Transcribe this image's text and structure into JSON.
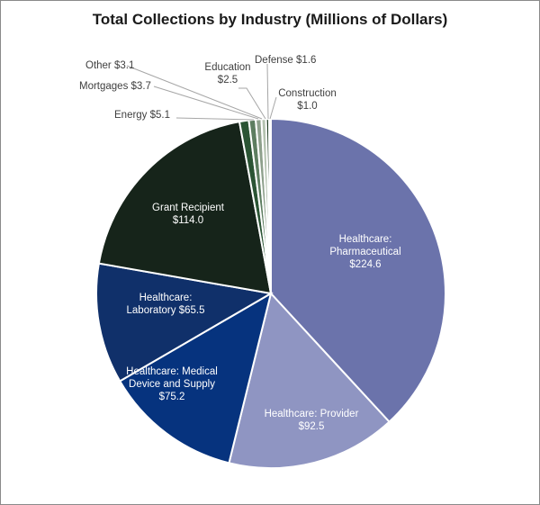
{
  "chart_data": {
    "type": "pie",
    "title": "Total Collections by Industry (Millions of Dollars)",
    "start_angle": "12 o'clock, clockwise",
    "slices": [
      {
        "label": "Healthcare: Pharmaceutical",
        "text": "Healthcare:\nPharmaceutical\n$224.6",
        "value": 224.6,
        "color": "#6b73ab"
      },
      {
        "label": "Healthcare: Provider",
        "text": "Healthcare: Provider\n$92.5",
        "value": 92.5,
        "color": "#8f95c2"
      },
      {
        "label": "Healthcare: Medical Device and Supply",
        "text": "Healthcare: Medical\nDevice and Supply\n$75.2",
        "value": 75.2,
        "color": "#06337e"
      },
      {
        "label": "Healthcare: Laboratory",
        "text": "Healthcare:\nLaboratory  $65.5",
        "value": 65.5,
        "color": "#10306a"
      },
      {
        "label": "Grant Recipient",
        "text": "Grant Recipient\n$114.0",
        "value": 114.0,
        "color": "#16241a"
      },
      {
        "label": "Energy",
        "text": "Energy  $5.1",
        "value": 5.1,
        "color": "#2b5434"
      },
      {
        "label": "Mortgages",
        "text": "Mortgages  $3.7",
        "value": 3.7,
        "color": "#5d7d60"
      },
      {
        "label": "Other",
        "text": "Other  $3.1",
        "value": 3.1,
        "color": "#8ea08c"
      },
      {
        "label": "Education",
        "text": "Education\n$2.5",
        "value": 2.5,
        "color": "#b4c2b0"
      },
      {
        "label": "Defense",
        "text": "Defense  $1.6",
        "value": 1.6,
        "color": "#1f3d22"
      },
      {
        "label": "Construction",
        "text": "Construction\n$1.0",
        "value": 1.0,
        "color": "#d9cc8c"
      }
    ]
  }
}
